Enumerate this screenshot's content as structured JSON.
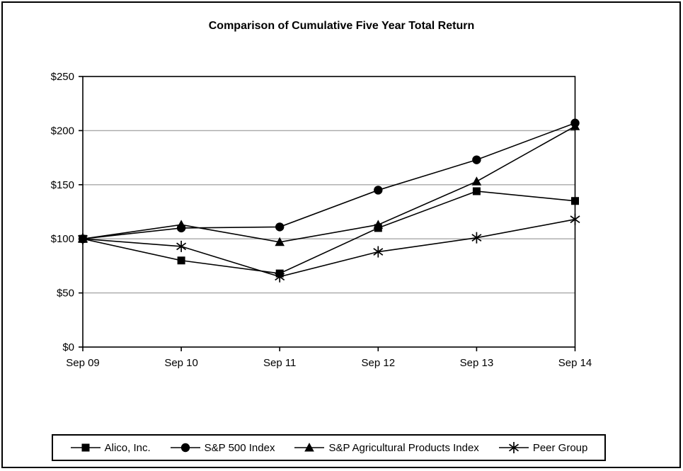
{
  "chart_data": {
    "type": "line",
    "title": "Comparison of Cumulative Five Year Total Return",
    "categories": [
      "Sep 09",
      "Sep 10",
      "Sep 11",
      "Sep 12",
      "Sep 13",
      "Sep 14"
    ],
    "series": [
      {
        "name": "Alico, Inc.",
        "marker": "square",
        "color": "#000000",
        "values": [
          100,
          80,
          68,
          110,
          144,
          135
        ]
      },
      {
        "name": "S&P 500 Index",
        "marker": "circle",
        "color": "#000000",
        "values": [
          100,
          110,
          111,
          145,
          173,
          207
        ]
      },
      {
        "name": "S&P Agricultural Products Index",
        "marker": "triangle",
        "color": "#000000",
        "values": [
          100,
          113,
          97,
          113,
          153,
          204
        ]
      },
      {
        "name": "Peer Group",
        "marker": "asterisk",
        "color": "#000000",
        "values": [
          100,
          93,
          65,
          88,
          101,
          118
        ]
      }
    ],
    "xlabel": "",
    "ylabel": "",
    "ylim": [
      0,
      250
    ],
    "ytick_values": [
      0,
      50,
      100,
      150,
      200,
      250
    ],
    "ytick_labels": [
      "$0",
      "$50",
      "$100",
      "$150",
      "$200",
      "$250"
    ],
    "grid": "horizontal-only",
    "gridline_color": "#a8a8a8",
    "axis_color": "#000000",
    "line_color": "#000000",
    "legend_position": "bottom"
  }
}
